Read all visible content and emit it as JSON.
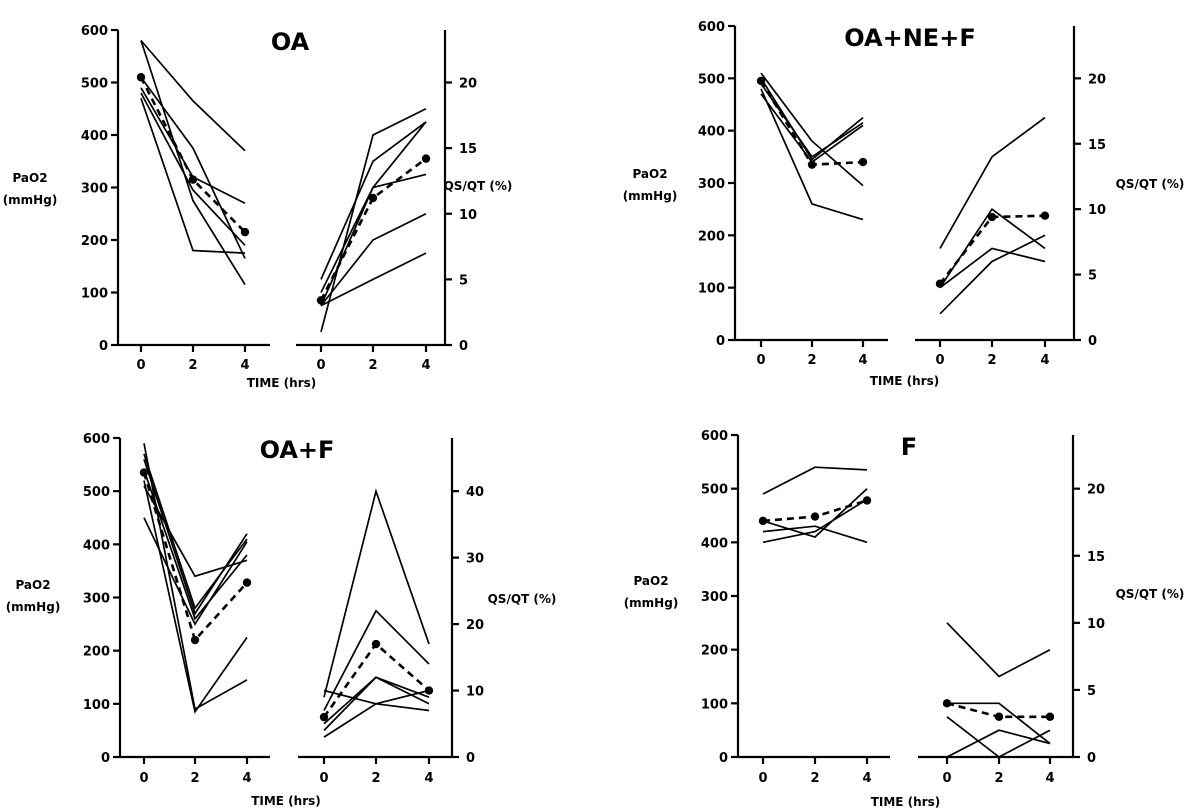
{
  "chart_data": [
    {
      "type": "line",
      "title": "OA",
      "xlabel": "TIME (hrs)",
      "left_ylabel": [
        "PaO2",
        "(mmHg)"
      ],
      "right_ylabel": "QS/QT (%)",
      "x": [
        0,
        2,
        4
      ],
      "x_ticks": [
        "0",
        "2",
        "4"
      ],
      "pao2_ylim": [
        0,
        600
      ],
      "pao2_ticks": [
        "0",
        "100",
        "200",
        "300",
        "400",
        "500",
        "600"
      ],
      "qsqt_ylim": [
        0,
        24
      ],
      "qsqt_ticks": [
        "0",
        "5",
        "10",
        "15",
        "20"
      ],
      "pao2_series": [
        {
          "values": [
            580,
            465,
            370
          ]
        },
        {
          "values": [
            580,
            275,
            115
          ]
        },
        {
          "values": [
            510,
            375,
            165
          ]
        },
        {
          "values": [
            490,
            320,
            270
          ]
        },
        {
          "values": [
            480,
            295,
            190
          ]
        },
        {
          "values": [
            470,
            180,
            175
          ]
        }
      ],
      "pao2_mean": [
        510,
        315,
        215
      ],
      "qsqt_series": [
        {
          "values": [
            1,
            16,
            18
          ]
        },
        {
          "values": [
            3,
            8,
            10
          ]
        },
        {
          "values": [
            3,
            12,
            13
          ]
        },
        {
          "values": [
            5,
            14,
            17
          ]
        },
        {
          "values": [
            4,
            12,
            17
          ]
        },
        {
          "values": [
            3,
            5,
            7
          ]
        }
      ],
      "qsqt_mean": [
        3.4,
        11.2,
        14.2
      ]
    },
    {
      "type": "line",
      "title": "OA+NE+F",
      "xlabel": "TIME (hrs)",
      "left_ylabel": [
        "PaO2",
        "(mmHg)"
      ],
      "right_ylabel": "QS/QT (%)",
      "x": [
        0,
        2,
        4
      ],
      "x_ticks": [
        "0",
        "2",
        "4"
      ],
      "pao2_ylim": [
        0,
        600
      ],
      "pao2_ticks": [
        "0",
        "100",
        "200",
        "300",
        "400",
        "500",
        "600"
      ],
      "qsqt_ylim": [
        0,
        24
      ],
      "qsqt_ticks": [
        "0",
        "5",
        "10",
        "15",
        "20"
      ],
      "pao2_series": [
        {
          "values": [
            510,
            380,
            295
          ]
        },
        {
          "values": [
            500,
            345,
            425
          ]
        },
        {
          "values": [
            490,
            350,
            415
          ]
        },
        {
          "values": [
            480,
            260,
            230
          ]
        },
        {
          "values": [
            470,
            340,
            410
          ]
        }
      ],
      "pao2_mean": [
        495,
        335,
        340
      ],
      "qsqt_series": [
        {
          "values": [
            7,
            14,
            17
          ]
        },
        {
          "values": [
            4,
            10,
            7
          ]
        },
        {
          "values": [
            4,
            7,
            6
          ]
        },
        {
          "values": [
            2,
            6,
            8
          ]
        }
      ],
      "qsqt_mean": [
        4.3,
        9.4,
        9.5
      ]
    },
    {
      "type": "line",
      "title": "OA+F",
      "xlabel": "TIME (hrs)",
      "left_ylabel": [
        "PaO2",
        "(mmHg)"
      ],
      "right_ylabel": "QS/QT (%)",
      "x": [
        0,
        2,
        4
      ],
      "x_ticks": [
        "0",
        "2",
        "4"
      ],
      "pao2_ylim": [
        0,
        600
      ],
      "pao2_ticks": [
        "0",
        "100",
        "200",
        "300",
        "400",
        "500",
        "600"
      ],
      "qsqt_ylim": [
        0,
        48
      ],
      "qsqt_ticks": [
        "0",
        "10",
        "20",
        "30",
        "40"
      ],
      "pao2_series": [
        {
          "values": [
            590,
            90,
            145
          ]
        },
        {
          "values": [
            570,
            280,
            410
          ]
        },
        {
          "values": [
            560,
            270,
            420
          ]
        },
        {
          "values": [
            540,
            260,
            380
          ]
        },
        {
          "values": [
            520,
            85,
            225
          ]
        },
        {
          "values": [
            510,
            340,
            370
          ]
        },
        {
          "values": [
            450,
            250,
            405
          ]
        }
      ],
      "pao2_mean": [
        535,
        220,
        328
      ],
      "qsqt_series": [
        {
          "values": [
            9,
            40,
            17
          ]
        },
        {
          "values": [
            7,
            22,
            14
          ]
        },
        {
          "values": [
            10,
            8,
            7
          ]
        },
        {
          "values": [
            5,
            12,
            8
          ]
        },
        {
          "values": [
            4,
            12,
            9
          ]
        },
        {
          "values": [
            3,
            8,
            10
          ]
        }
      ],
      "qsqt_mean": [
        6,
        17,
        10
      ]
    },
    {
      "type": "line",
      "title": "F",
      "xlabel": "TIME (hrs)",
      "left_ylabel": [
        "PaO2",
        "(mmHg)"
      ],
      "right_ylabel": "QS/QT (%)",
      "x": [
        0,
        2,
        4
      ],
      "x_ticks": [
        "0",
        "2",
        "4"
      ],
      "pao2_ylim": [
        0,
        600
      ],
      "pao2_ticks": [
        "0",
        "100",
        "200",
        "300",
        "400",
        "500",
        "600"
      ],
      "qsqt_ylim": [
        0,
        24
      ],
      "qsqt_ticks": [
        "0",
        "5",
        "10",
        "15",
        "20"
      ],
      "pao2_series": [
        {
          "values": [
            490,
            540,
            535
          ]
        },
        {
          "values": [
            440,
            410,
            500
          ]
        },
        {
          "values": [
            420,
            430,
            400
          ]
        },
        {
          "values": [
            400,
            420,
            480
          ]
        }
      ],
      "pao2_mean": [
        440,
        448,
        478
      ],
      "qsqt_series": [
        {
          "values": [
            10,
            6,
            8
          ]
        },
        {
          "values": [
            4,
            4,
            1
          ]
        },
        {
          "values": [
            0,
            2,
            1
          ]
        },
        {
          "values": [
            3,
            0,
            2
          ]
        }
      ],
      "qsqt_mean": [
        4,
        3,
        3
      ]
    }
  ]
}
